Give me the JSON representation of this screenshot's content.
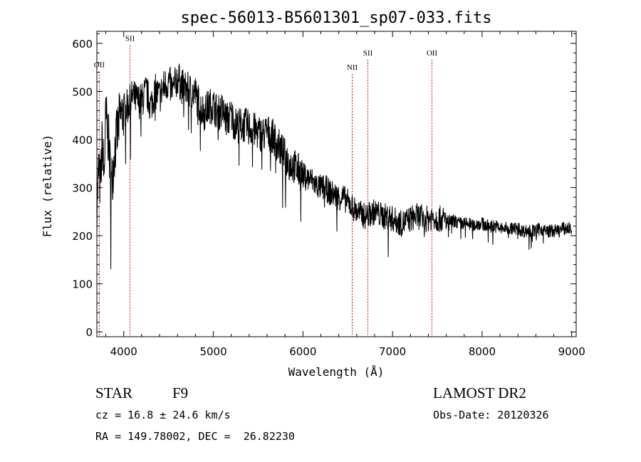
{
  "chart_data": {
    "type": "line",
    "title": "spec-56013-B5601301_sp07-033.fits",
    "xlabel": "Wavelength (Å)",
    "ylabel": "Flux (relative)",
    "xlim": [
      3700,
      9050
    ],
    "ylim": [
      -10,
      625
    ],
    "xticks": [
      4000,
      5000,
      6000,
      7000,
      8000,
      9000
    ],
    "yticks": [
      0,
      100,
      200,
      300,
      400,
      500,
      600
    ],
    "grid": false,
    "line_color": "#000000",
    "marker_color": "#cc0000",
    "spectral_lines": [
      {
        "label": "OII",
        "wavelength": 3727,
        "label_flux": 550
      },
      {
        "label": "SII",
        "wavelength": 4070,
        "label_flux": 605
      },
      {
        "label": "NII",
        "wavelength": 6550,
        "label_flux": 545
      },
      {
        "label": "SII",
        "wavelength": 6725,
        "label_flux": 575
      },
      {
        "label": "OII",
        "wavelength": 7440,
        "label_flux": 575
      }
    ],
    "series": [
      {
        "x": [
          3700,
          3720,
          3740,
          3760,
          3780,
          3800,
          3830,
          3860,
          3900,
          3950,
          4000,
          4050,
          4100,
          4150,
          4200,
          4250,
          4300,
          4350,
          4400,
          4450,
          4500,
          4550,
          4600,
          4650,
          4700,
          4750,
          4800,
          4850,
          4900,
          4950,
          5000,
          5050,
          5100,
          5150,
          5200,
          5250,
          5300,
          5350,
          5400,
          5450,
          5500,
          5550,
          5600,
          5650,
          5700,
          5750,
          5800,
          5850,
          5900,
          5950,
          6000,
          6050,
          6100,
          6150,
          6200,
          6250,
          6300,
          6350,
          6400,
          6450,
          6500,
          6550,
          6600,
          6650,
          6700,
          6750,
          6800,
          6850,
          6900,
          6950,
          7000,
          7050,
          7100,
          7150,
          7200,
          7250,
          7300,
          7350,
          7400,
          7450,
          7500,
          7550,
          7600,
          7650,
          7700,
          7750,
          7800,
          7850,
          7900,
          7950,
          8000,
          8050,
          8100,
          8150,
          8200,
          8250,
          8300,
          8350,
          8400,
          8450,
          8500,
          8550,
          8600,
          8650,
          8700,
          8750,
          8800,
          8850,
          8900,
          8950,
          9000
        ],
        "y": [
          260,
          340,
          300,
          400,
          320,
          450,
          400,
          300,
          380,
          440,
          460,
          470,
          490,
          480,
          480,
          500,
          470,
          500,
          490,
          510,
          520,
          500,
          530,
          510,
          505,
          500,
          495,
          470,
          455,
          470,
          470,
          455,
          460,
          440,
          450,
          430,
          430,
          430,
          425,
          420,
          415,
          410,
          415,
          410,
          395,
          380,
          365,
          350,
          345,
          335,
          325,
          320,
          315,
          305,
          300,
          300,
          290,
          285,
          280,
          280,
          270,
          260,
          250,
          245,
          240,
          245,
          250,
          245,
          240,
          240,
          235,
          230,
          225,
          230,
          235,
          240,
          240,
          235,
          235,
          240,
          235,
          235,
          230,
          230,
          230,
          225,
          225,
          225,
          220,
          225,
          225,
          220,
          220,
          220,
          215,
          215,
          215,
          215,
          215,
          210,
          210,
          210,
          210,
          215,
          210,
          210,
          210,
          210,
          215,
          215,
          215
        ]
      }
    ]
  },
  "info": {
    "object_class": "STAR",
    "subclass": "F9",
    "survey": "LAMOST DR2",
    "cz": "cz = 16.8 ± 24.6 km/s",
    "obs_date": "Obs-Date: 20120326",
    "coords": "RA = 149.78002, DEC =  26.82230"
  }
}
